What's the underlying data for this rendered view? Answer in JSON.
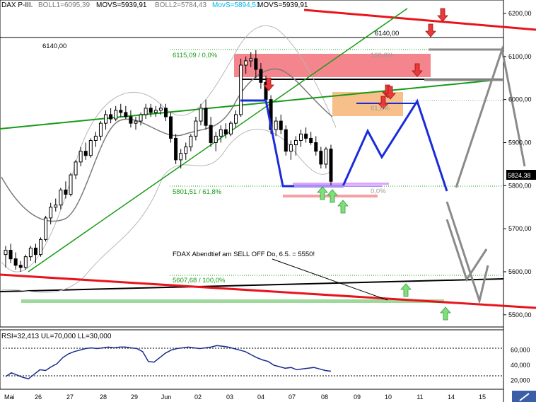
{
  "header": {
    "symbol": "DAX P-III.",
    "boll1": "BOLL1=6095,39",
    "movs1": "MOVS=5939,91",
    "boll2": "BOLL2=5784,43",
    "movs_cyan": "MovS=5894,51",
    "movs2": "MOVS=5939,91",
    "cyan_color": "#00b8e6"
  },
  "price_panel": {
    "yticks": [
      "6200,00",
      "6100,00",
      "6000,00",
      "5900,00",
      "5800,00",
      "5700,00",
      "5600,00",
      "5500,00"
    ],
    "ytick_values": [
      6200,
      6100,
      6000,
      5900,
      5800,
      5700,
      5600,
      5500
    ],
    "last_price": "5824,38",
    "last_value": 5824.38,
    "ylim": [
      5475,
      6228
    ]
  },
  "rsi_panel": {
    "label": "RSI=32,413 UL=70,000 LL=30,000",
    "yticks": [
      "60,000",
      "40,000",
      "20,000"
    ],
    "ytick_values": [
      60,
      40,
      20
    ],
    "upper": 70,
    "lower": 30,
    "ylim": [
      10,
      85
    ]
  },
  "xaxis": {
    "labels": [
      "Mai",
      "26",
      "27",
      "28",
      "29",
      "Jun",
      "02",
      "03",
      "04",
      "07",
      "08",
      "09",
      "10",
      "11",
      "14",
      "15"
    ]
  },
  "annotations": {
    "level_6140_left": "6140,00",
    "level_6140_right": "6140,00",
    "fib_6115": "6115,09 / 0,0%",
    "fib_100_pct": "100,0%",
    "fib_61_pct": "61,8%",
    "fib_5801": "5801,51 / 61,8%",
    "fib_0_pct": "0,0%",
    "fib_5607": "5607,68 / 100,0%",
    "note": "FDAX Abendtief am SELL OFF Do, 6.5. = 5550!"
  },
  "colors": {
    "red_line": "#e8141c",
    "green_line": "#169b16",
    "blue_path": "#1a2bdc",
    "grey_path": "#8a8a8a",
    "red_box": "#f4858c",
    "orange_box": "#f7c08a",
    "light_green_band": "#9ed89a",
    "down_arrow": "#e83a3a",
    "up_arrow": "#7de07d"
  },
  "chart_data": {
    "type": "candlestick",
    "categories": [
      "Mai",
      "26",
      "27",
      "28",
      "29",
      "Jun",
      "02",
      "03",
      "04",
      "07",
      "08"
    ],
    "candles": [
      {
        "o": 5640,
        "h": 5660,
        "l": 5610,
        "c": 5650
      },
      {
        "o": 5650,
        "h": 5665,
        "l": 5620,
        "c": 5630
      },
      {
        "o": 5630,
        "h": 5645,
        "l": 5605,
        "c": 5615
      },
      {
        "o": 5615,
        "h": 5625,
        "l": 5600,
        "c": 5610
      },
      {
        "o": 5610,
        "h": 5640,
        "l": 5605,
        "c": 5635
      },
      {
        "o": 5635,
        "h": 5660,
        "l": 5625,
        "c": 5655
      },
      {
        "o": 5655,
        "h": 5665,
        "l": 5620,
        "c": 5640
      },
      {
        "o": 5640,
        "h": 5680,
        "l": 5635,
        "c": 5675
      },
      {
        "o": 5675,
        "h": 5730,
        "l": 5670,
        "c": 5725
      },
      {
        "o": 5725,
        "h": 5760,
        "l": 5710,
        "c": 5750
      },
      {
        "o": 5750,
        "h": 5770,
        "l": 5740,
        "c": 5755
      },
      {
        "o": 5755,
        "h": 5795,
        "l": 5745,
        "c": 5790
      },
      {
        "o": 5790,
        "h": 5810,
        "l": 5770,
        "c": 5780
      },
      {
        "o": 5780,
        "h": 5830,
        "l": 5775,
        "c": 5825
      },
      {
        "o": 5825,
        "h": 5860,
        "l": 5815,
        "c": 5855
      },
      {
        "o": 5855,
        "h": 5890,
        "l": 5845,
        "c": 5880
      },
      {
        "o": 5880,
        "h": 5900,
        "l": 5860,
        "c": 5870
      },
      {
        "o": 5870,
        "h": 5910,
        "l": 5865,
        "c": 5905
      },
      {
        "o": 5905,
        "h": 5925,
        "l": 5890,
        "c": 5915
      },
      {
        "o": 5915,
        "h": 5950,
        "l": 5905,
        "c": 5945
      },
      {
        "o": 5945,
        "h": 5975,
        "l": 5930,
        "c": 5965
      },
      {
        "o": 5965,
        "h": 5980,
        "l": 5945,
        "c": 5955
      },
      {
        "o": 5955,
        "h": 5985,
        "l": 5950,
        "c": 5975
      },
      {
        "o": 5975,
        "h": 5990,
        "l": 5960,
        "c": 5970
      },
      {
        "o": 5970,
        "h": 5985,
        "l": 5955,
        "c": 5960
      },
      {
        "o": 5960,
        "h": 5975,
        "l": 5935,
        "c": 5945
      },
      {
        "o": 5945,
        "h": 5960,
        "l": 5930,
        "c": 5950
      },
      {
        "o": 5950,
        "h": 5970,
        "l": 5940,
        "c": 5965
      },
      {
        "o": 5965,
        "h": 5990,
        "l": 5955,
        "c": 5980
      },
      {
        "o": 5980,
        "h": 5990,
        "l": 5960,
        "c": 5970
      },
      {
        "o": 5970,
        "h": 5985,
        "l": 5960,
        "c": 5975
      },
      {
        "o": 5975,
        "h": 5990,
        "l": 5965,
        "c": 5980
      },
      {
        "o": 5980,
        "h": 5990,
        "l": 5950,
        "c": 5960
      },
      {
        "o": 5960,
        "h": 5970,
        "l": 5900,
        "c": 5910
      },
      {
        "o": 5910,
        "h": 5920,
        "l": 5850,
        "c": 5860
      },
      {
        "o": 5860,
        "h": 5885,
        "l": 5840,
        "c": 5875
      },
      {
        "o": 5875,
        "h": 5900,
        "l": 5860,
        "c": 5890
      },
      {
        "o": 5890,
        "h": 5920,
        "l": 5880,
        "c": 5915
      },
      {
        "o": 5915,
        "h": 5960,
        "l": 5905,
        "c": 5950
      },
      {
        "o": 5950,
        "h": 5990,
        "l": 5940,
        "c": 5980
      },
      {
        "o": 5980,
        "h": 6000,
        "l": 5930,
        "c": 5940
      },
      {
        "o": 5940,
        "h": 5960,
        "l": 5890,
        "c": 5900
      },
      {
        "o": 5900,
        "h": 5925,
        "l": 5880,
        "c": 5915
      },
      {
        "o": 5915,
        "h": 5940,
        "l": 5900,
        "c": 5930
      },
      {
        "o": 5930,
        "h": 5945,
        "l": 5910,
        "c": 5920
      },
      {
        "o": 5920,
        "h": 5950,
        "l": 5915,
        "c": 5945
      },
      {
        "o": 5945,
        "h": 5975,
        "l": 5935,
        "c": 5965
      },
      {
        "o": 5965,
        "h": 6095,
        "l": 5960,
        "c": 6080
      },
      {
        "o": 6080,
        "h": 6100,
        "l": 6060,
        "c": 6090
      },
      {
        "o": 6090,
        "h": 6110,
        "l": 6075,
        "c": 6095
      },
      {
        "o": 6095,
        "h": 6115,
        "l": 6050,
        "c": 6070
      },
      {
        "o": 6070,
        "h": 6085,
        "l": 6025,
        "c": 6040
      },
      {
        "o": 6040,
        "h": 6055,
        "l": 5990,
        "c": 6000
      },
      {
        "o": 6000,
        "h": 6010,
        "l": 5920,
        "c": 5930
      },
      {
        "o": 5930,
        "h": 5960,
        "l": 5915,
        "c": 5950
      },
      {
        "o": 5950,
        "h": 5965,
        "l": 5920,
        "c": 5930
      },
      {
        "o": 5930,
        "h": 5940,
        "l": 5870,
        "c": 5880
      },
      {
        "o": 5880,
        "h": 5905,
        "l": 5860,
        "c": 5895
      },
      {
        "o": 5895,
        "h": 5915,
        "l": 5870,
        "c": 5905
      },
      {
        "o": 5905,
        "h": 5930,
        "l": 5890,
        "c": 5920
      },
      {
        "o": 5920,
        "h": 5935,
        "l": 5900,
        "c": 5910
      },
      {
        "o": 5910,
        "h": 5925,
        "l": 5895,
        "c": 5900
      },
      {
        "o": 5900,
        "h": 5915,
        "l": 5870,
        "c": 5880
      },
      {
        "o": 5880,
        "h": 5890,
        "l": 5840,
        "c": 5850
      },
      {
        "o": 5850,
        "h": 5890,
        "l": 5840,
        "c": 5885
      },
      {
        "o": 5885,
        "h": 5895,
        "l": 5800,
        "c": 5810
      }
    ],
    "rsi": [
      25,
      30,
      27,
      24,
      22,
      28,
      34,
      33,
      38,
      42,
      50,
      55,
      58,
      60,
      62,
      63,
      62,
      63,
      64,
      63,
      64,
      64,
      63,
      62,
      58,
      45,
      44,
      50,
      56,
      60,
      62,
      63,
      64,
      63,
      62,
      63,
      64,
      66,
      65,
      64,
      62,
      60,
      58,
      54,
      50,
      47,
      45,
      40,
      38,
      36,
      37,
      34,
      35,
      36,
      37,
      35,
      33,
      32
    ],
    "levels": [
      {
        "label": "6140,00",
        "value": 6140
      },
      {
        "label": "6115,09 / 0,0%",
        "value": 6115.09
      },
      {
        "label": "5801,51 / 61,8%",
        "value": 5801.51
      },
      {
        "label": "5607,68 / 100,0%",
        "value": 5607.68
      }
    ],
    "ylim": [
      5475,
      6228
    ]
  }
}
